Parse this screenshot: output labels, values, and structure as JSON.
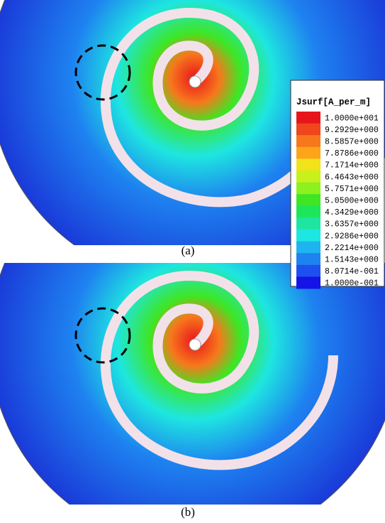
{
  "legend": {
    "title": "Jsurf[A_per_m]",
    "entries": [
      {
        "label": "1.0000e+001",
        "color": "#e8141c"
      },
      {
        "label": "9.2929e+000",
        "color": "#f0461c"
      },
      {
        "label": "8.5857e+000",
        "color": "#f7781c"
      },
      {
        "label": "7.8786e+000",
        "color": "#fca51a"
      },
      {
        "label": "7.1714e+000",
        "color": "#f2e21a"
      },
      {
        "label": "6.4643e+000",
        "color": "#c8f01a"
      },
      {
        "label": "5.7571e+000",
        "color": "#8ef01e"
      },
      {
        "label": "5.0500e+000",
        "color": "#3ee624"
      },
      {
        "label": "4.3429e+000",
        "color": "#1ee65a"
      },
      {
        "label": "3.6357e+000",
        "color": "#1ee6a0"
      },
      {
        "label": "2.9286e+000",
        "color": "#1ee6e0"
      },
      {
        "label": "2.2214e+000",
        "color": "#1eb4f0"
      },
      {
        "label": "1.5143e+000",
        "color": "#1e82f0"
      },
      {
        "label": "8.0714e-001",
        "color": "#1e50f0"
      },
      {
        "label": "1.0000e-001",
        "color": "#1414e6"
      }
    ]
  },
  "panels": [
    {
      "caption": "(a)"
    },
    {
      "caption": "(b)"
    }
  ]
}
